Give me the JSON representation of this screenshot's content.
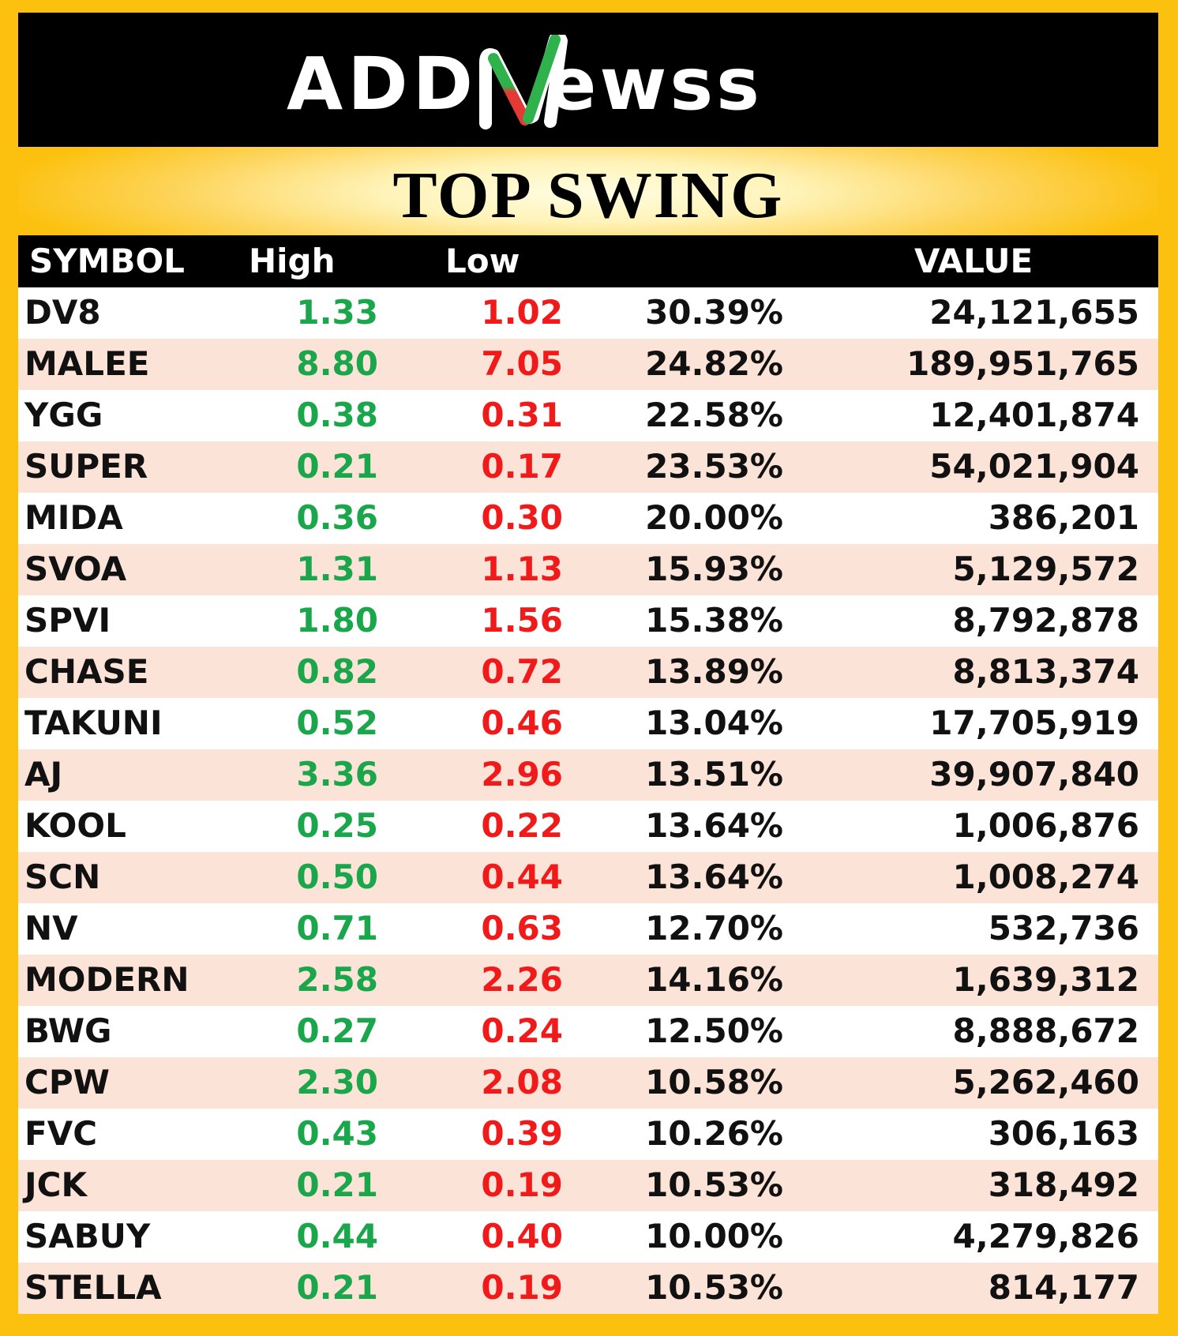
{
  "logo": {
    "text_left": "ADD",
    "text_right": "ewss",
    "accent_color": "#2fb24c",
    "accent_color_2": "#e53935"
  },
  "title": "TOP SWING",
  "headers": {
    "symbol": "SYMBOL",
    "high": "High",
    "low": "Low",
    "pct": "",
    "value": "VALUE"
  },
  "colors": {
    "background": "#fcc10e",
    "header_bg": "#000000",
    "row_alt_bg": "#fce3d7",
    "high_color": "#1aa64b",
    "low_color": "#f01a1a"
  },
  "rows": [
    {
      "symbol": "DV8",
      "high": "1.33",
      "low": "1.02",
      "pct": "30.39%",
      "value": "24,121,655"
    },
    {
      "symbol": "MALEE",
      "high": "8.80",
      "low": "7.05",
      "pct": "24.82%",
      "value": "189,951,765"
    },
    {
      "symbol": "YGG",
      "high": "0.38",
      "low": "0.31",
      "pct": "22.58%",
      "value": "12,401,874"
    },
    {
      "symbol": "SUPER",
      "high": "0.21",
      "low": "0.17",
      "pct": "23.53%",
      "value": "54,021,904"
    },
    {
      "symbol": "MIDA",
      "high": "0.36",
      "low": "0.30",
      "pct": "20.00%",
      "value": "386,201"
    },
    {
      "symbol": "SVOA",
      "high": "1.31",
      "low": "1.13",
      "pct": "15.93%",
      "value": "5,129,572"
    },
    {
      "symbol": "SPVI",
      "high": "1.80",
      "low": "1.56",
      "pct": "15.38%",
      "value": "8,792,878"
    },
    {
      "symbol": "CHASE",
      "high": "0.82",
      "low": "0.72",
      "pct": "13.89%",
      "value": "8,813,374"
    },
    {
      "symbol": "TAKUNI",
      "high": "0.52",
      "low": "0.46",
      "pct": "13.04%",
      "value": "17,705,919"
    },
    {
      "symbol": "AJ",
      "high": "3.36",
      "low": "2.96",
      "pct": "13.51%",
      "value": "39,907,840"
    },
    {
      "symbol": "KOOL",
      "high": "0.25",
      "low": "0.22",
      "pct": "13.64%",
      "value": "1,006,876"
    },
    {
      "symbol": "SCN",
      "high": "0.50",
      "low": "0.44",
      "pct": "13.64%",
      "value": "1,008,274"
    },
    {
      "symbol": "NV",
      "high": "0.71",
      "low": "0.63",
      "pct": "12.70%",
      "value": "532,736"
    },
    {
      "symbol": "MODERN",
      "high": "2.58",
      "low": "2.26",
      "pct": "14.16%",
      "value": "1,639,312"
    },
    {
      "symbol": "BWG",
      "high": "0.27",
      "low": "0.24",
      "pct": "12.50%",
      "value": "8,888,672"
    },
    {
      "symbol": "CPW",
      "high": "2.30",
      "low": "2.08",
      "pct": "10.58%",
      "value": "5,262,460"
    },
    {
      "symbol": "FVC",
      "high": "0.43",
      "low": "0.39",
      "pct": "10.26%",
      "value": "306,163"
    },
    {
      "symbol": "JCK",
      "high": "0.21",
      "low": "0.19",
      "pct": "10.53%",
      "value": "318,492"
    },
    {
      "symbol": "SABUY",
      "high": "0.44",
      "low": "0.40",
      "pct": "10.00%",
      "value": "4,279,826"
    },
    {
      "symbol": "STELLA",
      "high": "0.21",
      "low": "0.19",
      "pct": "10.53%",
      "value": "814,177"
    }
  ]
}
